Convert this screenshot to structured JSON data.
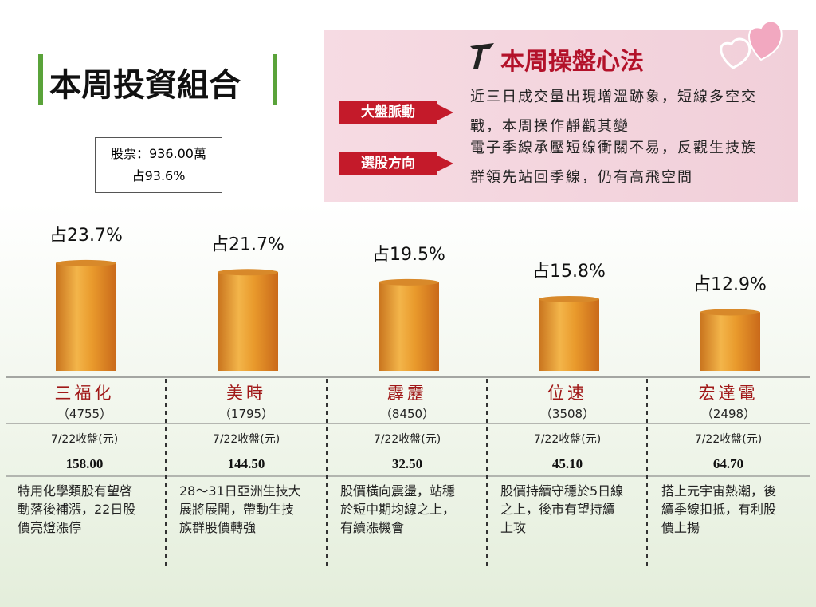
{
  "chart_data": {
    "type": "bar",
    "title": "本周投資組合",
    "categories": [
      "三福化",
      "美時",
      "霹靂",
      "位速",
      "宏達電"
    ],
    "codes": [
      "（4755）",
      "（1795）",
      "（8450）",
      "（3508）",
      "（2498）"
    ],
    "values": [
      23.7,
      21.7,
      19.5,
      15.8,
      12.9
    ],
    "value_labels": [
      "占23.7%",
      "占21.7%",
      "占19.5%",
      "占15.8%",
      "占12.9%"
    ],
    "color": "#d8892a",
    "close_label": "7/22收盤(元)",
    "closes": [
      "158.00",
      "144.50",
      "32.50",
      "45.10",
      "64.70"
    ],
    "notes": [
      [
        "特用化學類股有望啓",
        "動落後補漲，22日股",
        "價亮燈漲停"
      ],
      [
        "28～31日亞洲生技大",
        "展將展開，帶動生技",
        "族群股價轉強"
      ],
      [
        "股價橫向震盪，站穩",
        "於短中期均線之上，",
        "有續漲機會"
      ],
      [
        "股價持續守穩於5日線",
        "之上，後市有望持續",
        "上攻"
      ],
      [
        "搭上元宇宙熱潮，後",
        "續季線扣抵，有利股",
        "價上揚"
      ]
    ]
  },
  "portfolio_box": {
    "stock": "股票：936.00萬",
    "share": "占93.6%"
  },
  "strategy": {
    "title": "本周操盤心法",
    "items": [
      {
        "tag": "大盤脈動",
        "lines": [
          "近三日成交量出現增溫跡象，短線多空交",
          "戰，本周操作靜觀其變"
        ]
      },
      {
        "tag": "選股方向",
        "lines": [
          "電子季線承壓短線衝關不易，反觀生技族",
          "群領先站回季線，仍有高飛空間"
        ]
      }
    ]
  }
}
